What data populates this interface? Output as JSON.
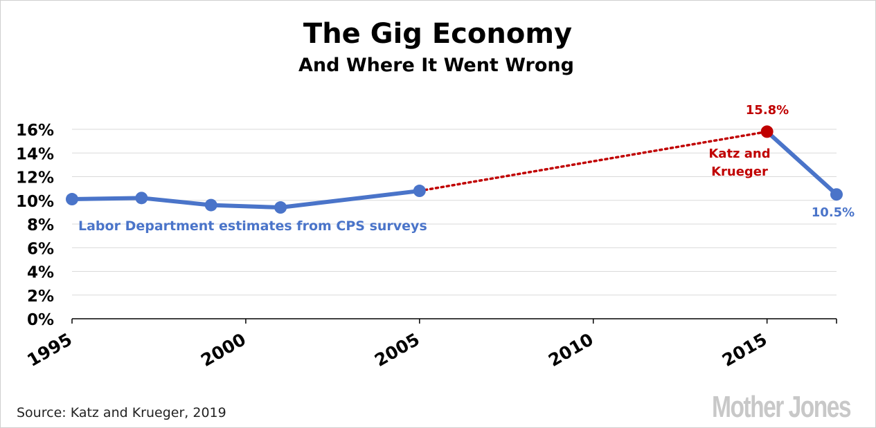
{
  "chart_data": {
    "type": "line",
    "title": "The Gig Economy",
    "subtitle": "And Where It Went Wrong",
    "x_ticks": [
      "1995",
      "2000",
      "2005",
      "2010",
      "2015"
    ],
    "xlim": [
      1995,
      2017
    ],
    "y_ticks": [
      "0%",
      "2%",
      "4%",
      "6%",
      "8%",
      "10%",
      "12%",
      "14%",
      "16%"
    ],
    "ylim": [
      0,
      16
    ],
    "grid": true,
    "series": [
      {
        "name": "Labor Department estimates from CPS surveys",
        "color": "#4a74c9",
        "points": [
          {
            "x": 1995,
            "y": 10.1
          },
          {
            "x": 1997,
            "y": 10.2
          },
          {
            "x": 1999,
            "y": 9.6
          },
          {
            "x": 2001,
            "y": 9.4
          },
          {
            "x": 2005,
            "y": 10.8
          },
          {
            "x": 2015,
            "y": 15.8
          },
          {
            "x": 2017,
            "y": 10.5
          }
        ]
      },
      {
        "name": "Katz and Krueger",
        "color": "#c00000",
        "style": "dotted",
        "points": [
          {
            "x": 2005,
            "y": 10.8
          },
          {
            "x": 2015,
            "y": 15.8
          }
        ]
      }
    ],
    "annotations": {
      "peak_label": "15.8%",
      "kk_label_line1": "Katz and",
      "kk_label_line2": "Krueger",
      "end_label": "10.5%",
      "cps_label": "Labor Department estimates from CPS surveys"
    },
    "source": "Source: Katz and Krueger, 2019",
    "brand": "Mother Jones"
  },
  "colors": {
    "blue": "#4a74c9",
    "red": "#c00000",
    "grid": "#d9d9d9",
    "axis": "#000000",
    "text": "#000000",
    "brand": "#c8c8c8"
  }
}
